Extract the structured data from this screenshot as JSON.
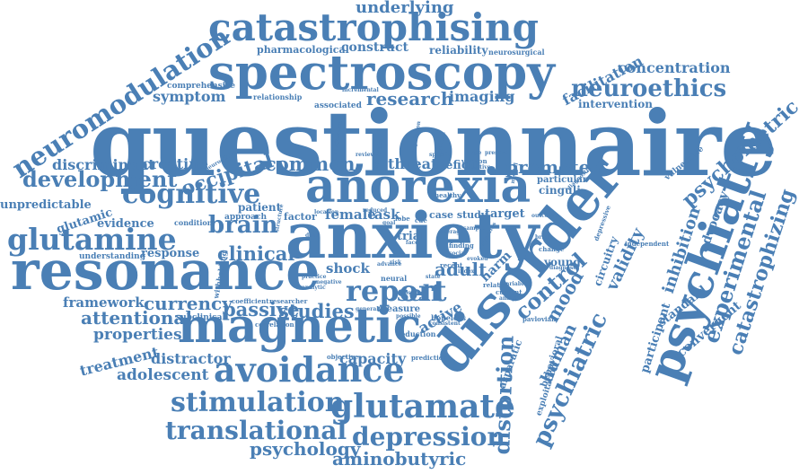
{
  "words": [
    {
      "text": "questionnaire",
      "color": "#4a7fb5"
    },
    {
      "text": "disorder",
      "color": "#4a7fb5"
    },
    {
      "text": "anxiety",
      "color": "#4a7fb5"
    },
    {
      "text": "spectroscopy",
      "color": "#4a7fb5"
    },
    {
      "text": "resonance",
      "color": "#4a7fb5"
    },
    {
      "text": "psychiatry",
      "color": "#4a7fb5"
    },
    {
      "text": "anorexia",
      "color": "#4a7fb5"
    },
    {
      "text": "magnetic",
      "color": "#4a7fb5"
    },
    {
      "text": "catastrophising",
      "color": "#4a7fb5"
    },
    {
      "text": "avoidance",
      "color": "#4a7fb5"
    },
    {
      "text": "glutamate",
      "color": "#4a7fb5"
    },
    {
      "text": "glutamine",
      "color": "#4a7fb5"
    },
    {
      "text": "cognitive",
      "color": "#4a7fb5"
    },
    {
      "text": "stimulation",
      "color": "#4a7fb5"
    },
    {
      "text": "neuromodulation",
      "color": "#4a7fb5"
    },
    {
      "text": "report",
      "color": "#4a7fb5"
    },
    {
      "text": "translational",
      "color": "#4a7fb5"
    },
    {
      "text": "depression",
      "color": "#4a7fb5"
    },
    {
      "text": "distortion",
      "color": "#4a7fb5"
    },
    {
      "text": "psychiatric",
      "color": "#4a7fb5"
    },
    {
      "text": "neuroethics",
      "color": "#4a7fb5"
    },
    {
      "text": "development",
      "color": "#4a7fb5"
    },
    {
      "text": "catastrophizing",
      "color": "#4a7fb5"
    },
    {
      "text": "experimental",
      "color": "#4a7fb5"
    },
    {
      "text": "psychometric",
      "color": "#4a7fb5"
    },
    {
      "text": "brain",
      "color": "#4a7fb5"
    },
    {
      "text": "control",
      "color": "#4a7fb5"
    },
    {
      "text": "common",
      "color": "#4a7fb5"
    },
    {
      "text": "promote",
      "color": "#4a7fb5"
    },
    {
      "text": "research",
      "color": "#4a7fb5"
    },
    {
      "text": "clinical",
      "color": "#4a7fb5"
    },
    {
      "text": "passive",
      "color": "#4a7fb5"
    },
    {
      "text": "studies",
      "color": "#4a7fb5"
    },
    {
      "text": "psychology",
      "color": "#4a7fb5"
    },
    {
      "text": "aminobutyric",
      "color": "#4a7fb5"
    },
    {
      "text": "occipital",
      "color": "#4a7fb5"
    },
    {
      "text": "self",
      "color": "#4a7fb5"
    },
    {
      "text": "adult",
      "color": "#4a7fb5"
    },
    {
      "text": "mood",
      "color": "#4a7fb5"
    },
    {
      "text": "validity",
      "color": "#4a7fb5"
    },
    {
      "text": "inhibition",
      "color": "#4a7fb5"
    },
    {
      "text": "facilitation",
      "color": "#4a7fb5"
    },
    {
      "text": "concentration",
      "color": "#4a7fb5"
    },
    {
      "text": "underlying",
      "color": "#4a7fb5"
    },
    {
      "text": "currency",
      "color": "#4a7fb5"
    },
    {
      "text": "attentional",
      "color": "#4a7fb5"
    },
    {
      "text": "framework",
      "color": "#4a7fb5"
    },
    {
      "text": "properties",
      "color": "#4a7fb5"
    },
    {
      "text": "adolescent",
      "color": "#4a7fb5"
    },
    {
      "text": "treatment",
      "color": "#4a7fb5"
    },
    {
      "text": "distractor",
      "color": "#4a7fb5"
    },
    {
      "text": "capacity",
      "color": "#4a7fb5"
    },
    {
      "text": "human",
      "color": "#4a7fb5"
    },
    {
      "text": "creatine",
      "color": "#4a7fb5"
    },
    {
      "text": "discriminant",
      "color": "#4a7fb5"
    },
    {
      "text": "threat",
      "color": "#4a7fb5"
    },
    {
      "text": "symptom",
      "color": "#4a7fb5"
    },
    {
      "text": "advocacy",
      "color": "#4a7fb5"
    },
    {
      "text": "convergent",
      "color": "#4a7fb5"
    },
    {
      "text": "standard",
      "color": "#4a7fb5"
    },
    {
      "text": "participant",
      "color": "#4a7fb5"
    },
    {
      "text": "imaging",
      "color": "#4a7fb5"
    },
    {
      "text": "construct",
      "color": "#4a7fb5"
    },
    {
      "text": "reliability",
      "color": "#4a7fb5"
    },
    {
      "text": "pharmacological",
      "color": "#4a7fb5"
    },
    {
      "text": "intervention",
      "color": "#4a7fb5"
    },
    {
      "text": "shock",
      "color": "#4a7fb5"
    },
    {
      "text": "female",
      "color": "#4a7fb5"
    },
    {
      "text": "task",
      "color": "#4a7fb5"
    },
    {
      "text": "response",
      "color": "#4a7fb5"
    },
    {
      "text": "evidence",
      "color": "#4a7fb5"
    },
    {
      "text": "glutamic",
      "color": "#4a7fb5"
    },
    {
      "text": "unpredictable",
      "color": "#4a7fb5"
    },
    {
      "text": "patient",
      "color": "#4a7fb5"
    },
    {
      "text": "factor",
      "color": "#4a7fb5"
    },
    {
      "text": "deficit",
      "color": "#4a7fb5"
    },
    {
      "text": "trial",
      "color": "#4a7fb5"
    },
    {
      "text": "active",
      "color": "#4a7fb5"
    },
    {
      "text": "measure",
      "color": "#4a7fb5"
    },
    {
      "text": "case study",
      "color": "#4a7fb5"
    },
    {
      "text": "target",
      "color": "#4a7fb5"
    },
    {
      "text": "young",
      "color": "#4a7fb5"
    },
    {
      "text": "harm",
      "color": "#4a7fb5"
    },
    {
      "text": "circuitry",
      "color": "#4a7fb5"
    },
    {
      "text": "cinguli",
      "color": "#4a7fb5"
    },
    {
      "text": "particular",
      "color": "#4a7fb5"
    },
    {
      "text": "vulnerable",
      "color": "#4a7fb5"
    },
    {
      "text": "asparatic",
      "color": "#4a7fb5"
    },
    {
      "text": "exploitation",
      "color": "#4a7fb5"
    },
    {
      "text": "behavioral",
      "color": "#4a7fb5"
    },
    {
      "text": "associated",
      "color": "#4a7fb5"
    },
    {
      "text": "comprehensive",
      "color": "#4a7fb5"
    },
    {
      "text": "relationship",
      "color": "#4a7fb5"
    },
    {
      "text": "neurosurgical",
      "color": "#4a7fb5"
    },
    {
      "text": "version",
      "color": "#4a7fb5"
    },
    {
      "text": "healthy",
      "color": "#4a7fb5"
    },
    {
      "text": "related",
      "color": "#4a7fb5"
    },
    {
      "text": "change",
      "color": "#4a7fb5"
    },
    {
      "text": "depressive",
      "color": "#4a7fb5"
    },
    {
      "text": "independent",
      "color": "#4a7fb5"
    },
    {
      "text": "subclinical",
      "color": "#4a7fb5"
    },
    {
      "text": "correlation",
      "color": "#4a7fb5"
    },
    {
      "text": "coefficient",
      "color": "#4a7fb5"
    },
    {
      "text": "researcher",
      "color": "#4a7fb5"
    },
    {
      "text": "neural",
      "color": "#4a7fb5"
    },
    {
      "text": "reduction",
      "color": "#4a7fb5"
    },
    {
      "text": "hopeless",
      "color": "#4a7fb5"
    },
    {
      "text": "prediction",
      "color": "#4a7fb5"
    },
    {
      "text": "objective",
      "color": "#4a7fb5"
    },
    {
      "text": "condition",
      "color": "#4a7fb5"
    },
    {
      "text": "approach",
      "color": "#4a7fb5"
    },
    {
      "text": "understanding",
      "color": "#4a7fb5"
    },
    {
      "text": "withholding",
      "color": "#4a7fb5"
    },
    {
      "text": "incremental",
      "color": "#4a7fb5"
    },
    {
      "text": "neuroethical",
      "color": "#4a7fb5"
    },
    {
      "text": "recent",
      "color": "#4a7fb5"
    },
    {
      "text": "current",
      "color": "#4a7fb5"
    },
    {
      "text": "diagnose",
      "color": "#4a7fb5"
    },
    {
      "text": "pavlovian",
      "color": "#4a7fb5"
    },
    {
      "text": "lobe",
      "color": "#4a7fb5"
    },
    {
      "text": "finding",
      "color": "#4a7fb5"
    },
    {
      "text": "separate",
      "color": "#4a7fb5"
    },
    {
      "text": "medication",
      "color": "#4a7fb5"
    },
    {
      "text": "population",
      "color": "#4a7fb5"
    },
    {
      "text": "general",
      "color": "#4a7fb5"
    },
    {
      "text": "negative",
      "color": "#4a7fb5"
    },
    {
      "text": "analyse",
      "color": "#4a7fb5"
    },
    {
      "text": "possible",
      "color": "#4a7fb5"
    },
    {
      "text": "consistent",
      "color": "#4a7fb5"
    },
    {
      "text": "variable",
      "color": "#4a7fb5"
    },
    {
      "text": "outcome",
      "color": "#4a7fb5"
    },
    {
      "text": "adaptive",
      "color": "#4a7fb5"
    },
    {
      "text": "diagnostic",
      "color": "#4a7fb5"
    },
    {
      "text": "practice",
      "color": "#4a7fb5"
    },
    {
      "text": "analytic",
      "color": "#4a7fb5"
    },
    {
      "text": "stimulus",
      "color": "#4a7fb5"
    },
    {
      "text": "location",
      "color": "#4a7fb5"
    },
    {
      "text": "structure",
      "color": "#4a7fb5"
    },
    {
      "text": "advance",
      "color": "#4a7fb5"
    },
    {
      "text": "specific",
      "color": "#4a7fb5"
    },
    {
      "text": "hope",
      "color": "#4a7fb5"
    },
    {
      "text": "present",
      "color": "#4a7fb5"
    },
    {
      "text": "evoked",
      "color": "#4a7fb5"
    },
    {
      "text": "cue",
      "color": "#4a7fb5"
    },
    {
      "text": "face",
      "color": "#4a7fb5"
    },
    {
      "text": "review",
      "color": "#4a7fb5"
    },
    {
      "text": "mental",
      "color": "#4a7fb5"
    },
    {
      "text": "reduced",
      "color": "#4a7fb5"
    },
    {
      "text": "disabled",
      "color": "#4a7fb5"
    },
    {
      "text": "average",
      "color": "#4a7fb5"
    },
    {
      "text": "positive",
      "color": "#4a7fb5"
    },
    {
      "text": "social",
      "color": "#4a7fb5"
    },
    {
      "text": "brief",
      "color": "#4a7fb5"
    },
    {
      "text": "dual",
      "color": "#4a7fb5"
    },
    {
      "text": "index",
      "color": "#4a7fb5"
    },
    {
      "text": "risk",
      "color": "#4a7fb5"
    },
    {
      "text": "state",
      "color": "#4a7fb5"
    },
    {
      "text": "sample",
      "color": "#4a7fb5"
    },
    {
      "text": "goal",
      "color": "#4a7fb5"
    }
  ]
}
